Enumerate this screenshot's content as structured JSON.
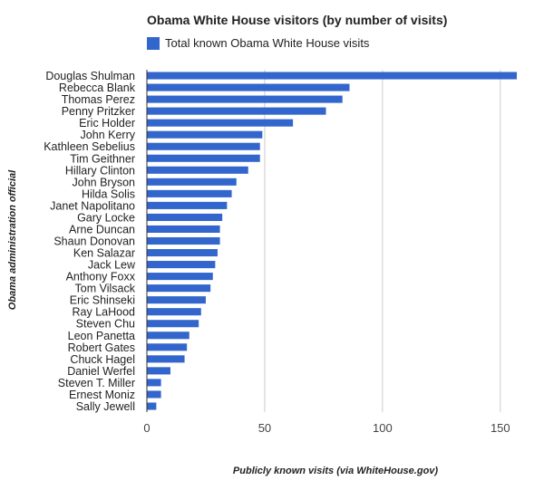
{
  "chart_data": {
    "type": "bar",
    "orientation": "horizontal",
    "title": "Obama White House visitors (by number of visits)",
    "xlabel": "Publicly known visits (via WhiteHouse.gov)",
    "ylabel": "Obama administration official",
    "xlim": [
      0,
      157
    ],
    "xticks": [
      0,
      50,
      100,
      150
    ],
    "grid": true,
    "legend_position": "top",
    "series": [
      {
        "name": "Total known Obama White House visits",
        "color": "#3366cc",
        "values": [
          157,
          86,
          83,
          76,
          62,
          49,
          48,
          48,
          43,
          38,
          36,
          34,
          32,
          31,
          31,
          30,
          29,
          28,
          27,
          25,
          23,
          22,
          18,
          17,
          16,
          10,
          6,
          6,
          4
        ]
      }
    ],
    "categories": [
      "Douglas Shulman",
      "Rebecca Blank",
      "Thomas Perez",
      "Penny Pritzker",
      "Eric Holder",
      "John Kerry",
      "Kathleen Sebelius",
      "Tim Geithner",
      "Hillary Clinton",
      "John Bryson",
      "Hilda Solis",
      "Janet Napolitano",
      "Gary Locke",
      "Arne Duncan",
      "Shaun Donovan",
      "Ken Salazar",
      "Jack Lew",
      "Anthony Foxx",
      "Tom Vilsack",
      "Eric Shinseki",
      "Ray LaHood",
      "Steven Chu",
      "Leon Panetta",
      "Robert Gates",
      "Chuck Hagel",
      "Daniel Werfel",
      "Steven T. Miller",
      "Ernest Moniz",
      "Sally Jewell"
    ]
  }
}
